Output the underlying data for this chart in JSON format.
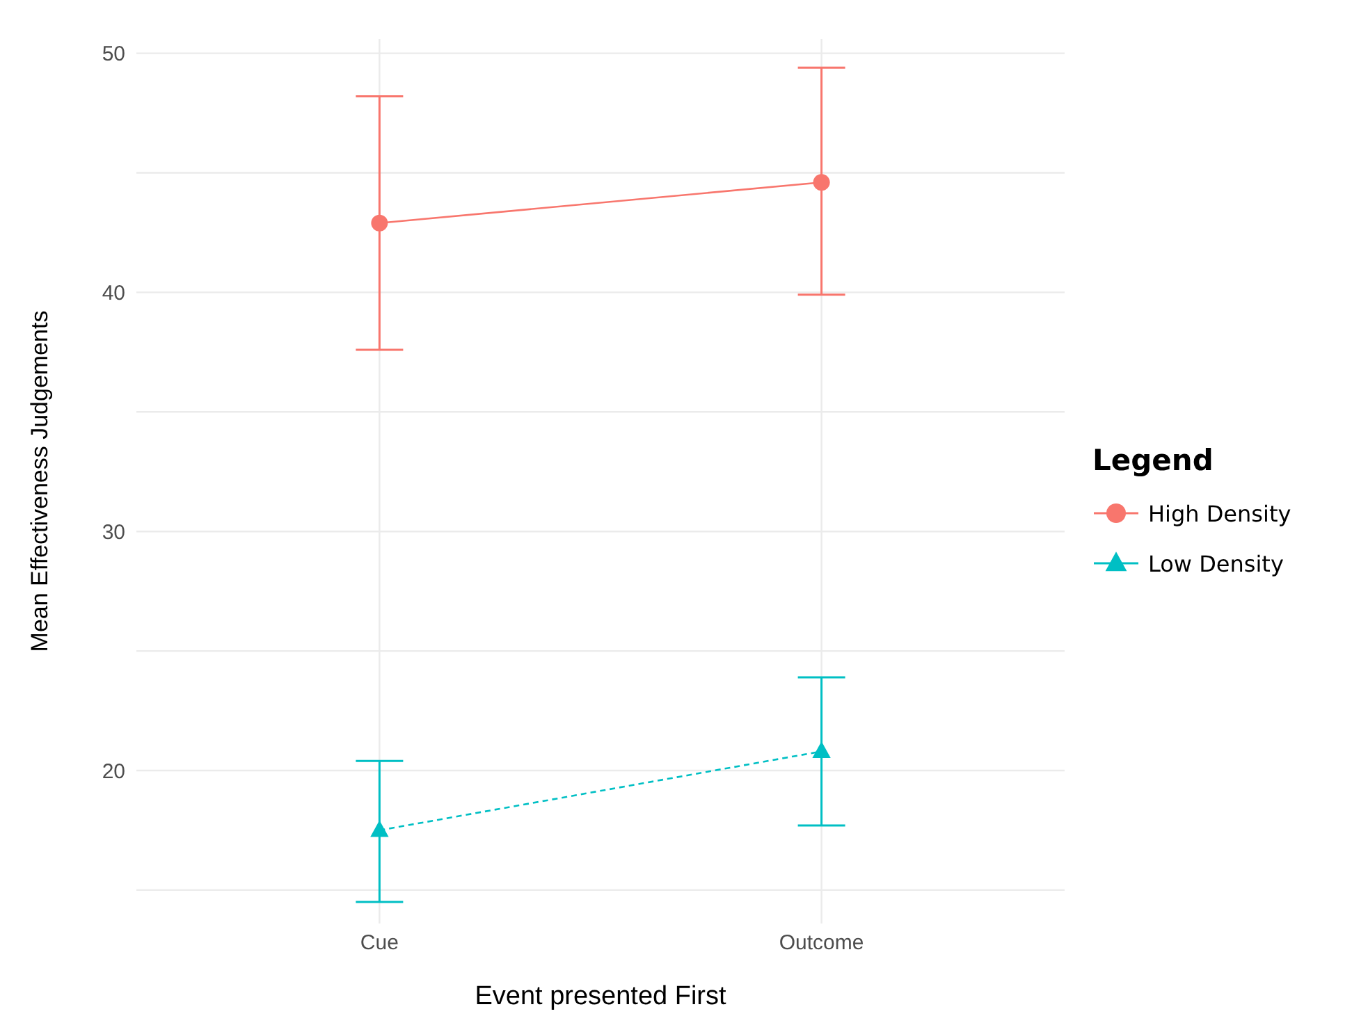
{
  "chart_data": {
    "type": "line",
    "xlabel": "Event presented First",
    "ylabel": "Mean Effectiveness Judgements",
    "legend_title": "Legend",
    "categories": [
      "Cue",
      "Outcome"
    ],
    "series": [
      {
        "name": "High Density",
        "color": "#f8766d",
        "values": [
          42.9,
          44.6
        ],
        "errors": [
          [
            37.6,
            48.2
          ],
          [
            39.9,
            49.4
          ]
        ],
        "marker": "circle",
        "line_style": "solid"
      },
      {
        "name": "Low Density",
        "color": "#00bfc4",
        "values": [
          17.5,
          20.8
        ],
        "errors": [
          [
            14.5,
            20.4
          ],
          [
            17.7,
            23.9
          ]
        ],
        "marker": "triangle",
        "line_style": "dashed"
      }
    ],
    "ylim": [
      13.6,
      50.6
    ],
    "yticks": [
      {
        "value": 15,
        "label": null
      },
      20,
      {
        "value": 25,
        "label": null
      },
      30,
      {
        "value": 35,
        "label": null
      },
      40,
      {
        "value": 45,
        "label": null
      },
      50
    ],
    "grid": true,
    "legend": "right"
  }
}
